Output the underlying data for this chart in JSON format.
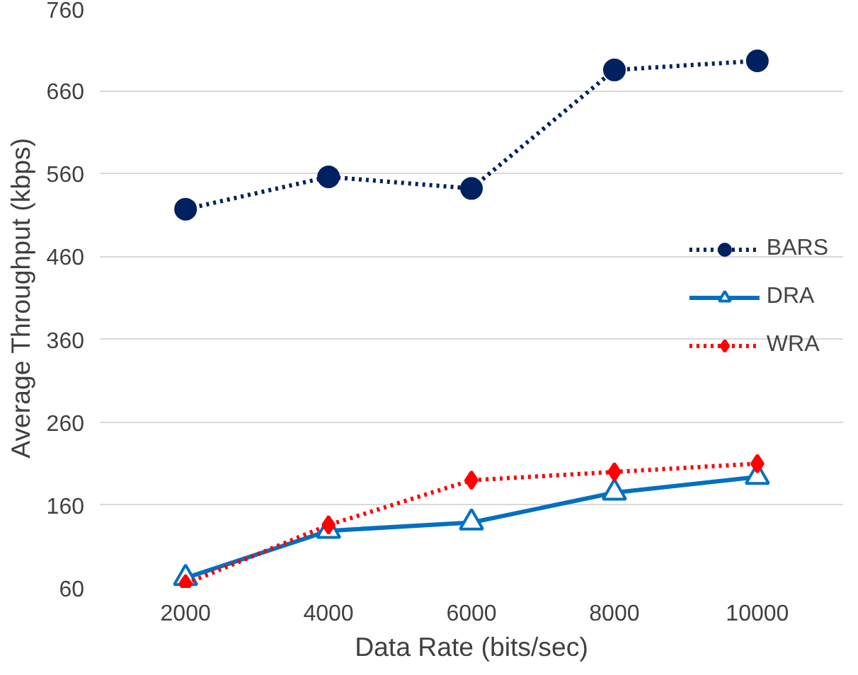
{
  "chart_data": {
    "type": "line",
    "xlabel": "Data Rate (bits/sec)",
    "ylabel": "Average Throughput (kbps)",
    "categories": [
      "2000",
      "4000",
      "6000",
      "8000",
      "10000"
    ],
    "ylim": [
      60,
      760
    ],
    "yticks": [
      60,
      160,
      260,
      360,
      460,
      560,
      660,
      760
    ],
    "grid": "y",
    "legend": "right",
    "series": [
      {
        "name": "BARS",
        "color": "#002060",
        "values": [
          517,
          556,
          542,
          685,
          696
        ],
        "marker": "circle",
        "line_style": "dotted"
      },
      {
        "name": "DRA",
        "color": "#0070c0",
        "values": [
          72,
          129,
          139,
          175,
          194
        ],
        "marker": "triangle",
        "line_style": "solid"
      },
      {
        "name": "WRA",
        "color": "#ff0000",
        "values": [
          65,
          136,
          190,
          200,
          210
        ],
        "marker": "diamond",
        "line_style": "dotted"
      }
    ]
  }
}
